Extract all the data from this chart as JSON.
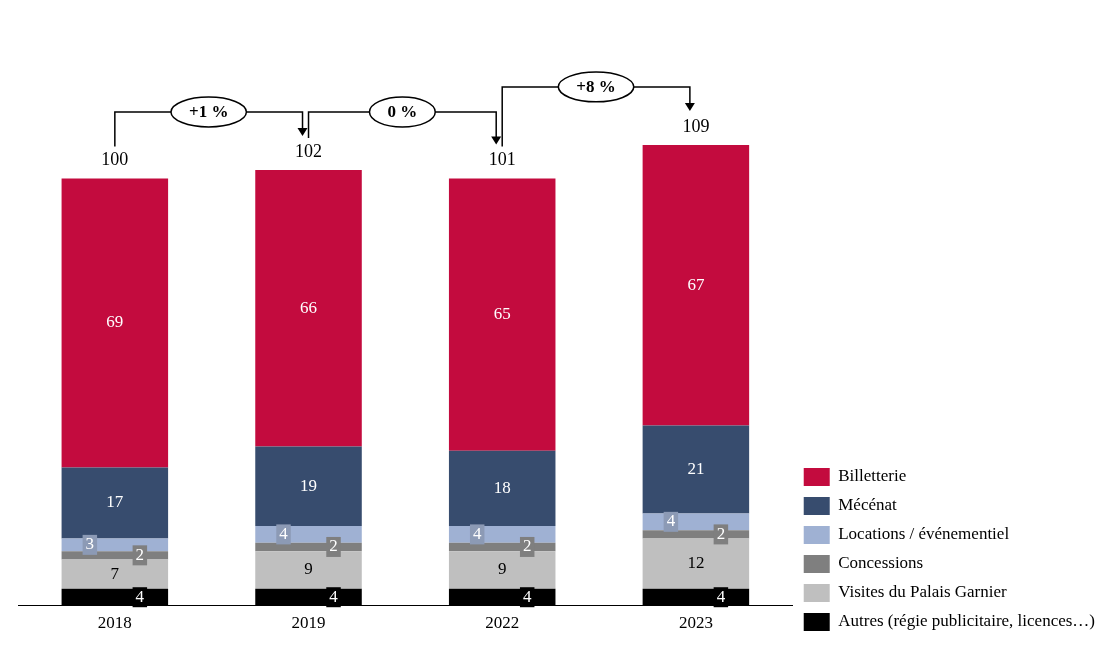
{
  "chart_data": {
    "type": "bar",
    "stacked": true,
    "categories": [
      "2018",
      "2019",
      "2022",
      "2023"
    ],
    "series": [
      {
        "name": "Autres (régie publicitaire, licences…)",
        "color": "#000000",
        "values": [
          4,
          4,
          4,
          4
        ]
      },
      {
        "name": "Visites du Palais Garnier",
        "color": "#bfbfbf",
        "values": [
          7,
          9,
          9,
          12
        ]
      },
      {
        "name": "Concessions",
        "color": "#7f7f7f",
        "values": [
          2,
          2,
          2,
          2
        ]
      },
      {
        "name": "Locations / événementiel",
        "color": "#9fb1d3",
        "values": [
          3,
          4,
          4,
          4
        ]
      },
      {
        "name": "Mécénat",
        "color": "#374c6e",
        "values": [
          17,
          19,
          18,
          21
        ]
      },
      {
        "name": "Billetterie",
        "color": "#c30b3e",
        "values": [
          69,
          66,
          65,
          67
        ]
      }
    ],
    "data_labels": true,
    "totals": [
      "100",
      "102",
      "101",
      "109"
    ],
    "annotations": [
      "+1 %",
      "0 %",
      "+8 %"
    ],
    "legend": "bottom right",
    "grid": false
  }
}
